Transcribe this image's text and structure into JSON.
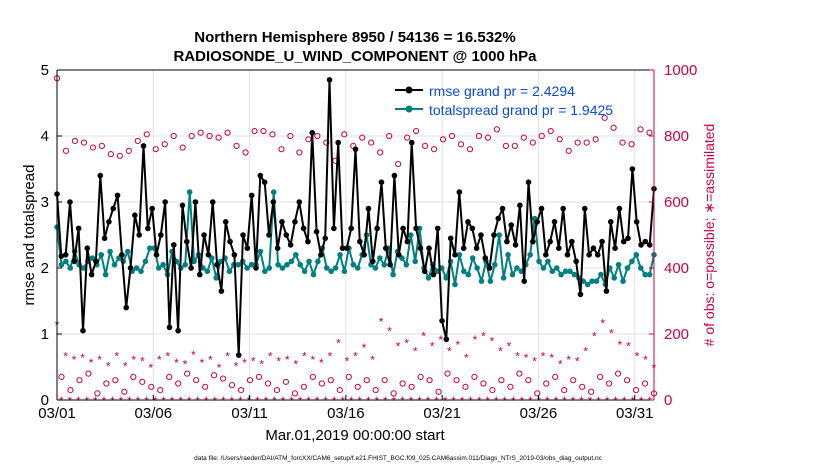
{
  "chart_data": {
    "type": "line",
    "title": "Northern Hemisphere 8950 / 54136 = 16.532%",
    "subtitle": "RADIOSONDE_U_WIND_COMPONENT @ 1000 hPa",
    "xlabel": "Mar.01,2019 00:00:00 start",
    "ylabel": "rmse and totalspread",
    "y2label": "# of obs: o=possible; ∗=assimilated",
    "footer": "data file: /Users/raeder/DAI/ATM_forcXX/CAM6_setup/f.e21.FHIST_BGC.f09_025.CAM6assim.011/Diags_NTrS_2019-03/obs_diag_output.nc",
    "x_ticks": [
      "03/01",
      "03/06",
      "03/11",
      "03/16",
      "03/21",
      "03/26",
      "03/31"
    ],
    "xlim": [
      0,
      31
    ],
    "ylim": [
      0,
      5
    ],
    "y_ticks": [
      "0",
      "1",
      "2",
      "3",
      "4",
      "5"
    ],
    "y2lim": [
      0,
      1000
    ],
    "y2_ticks": [
      "0",
      "200",
      "400",
      "600",
      "800",
      "1000"
    ],
    "series": [
      {
        "name": "rmse grand pr = 2.4294",
        "color": "#000000",
        "values": [
          3.12,
          2.18,
          2.2,
          3.0,
          2.1,
          2.6,
          1.05,
          2.3,
          1.9,
          2.1,
          3.4,
          2.45,
          2.7,
          2.9,
          3.1,
          2.2,
          1.4,
          2.0,
          2.8,
          2.5,
          3.85,
          2.6,
          2.9,
          2.2,
          2.5,
          3.0,
          1.1,
          2.35,
          1.05,
          2.95,
          2.4,
          2.0,
          3.0,
          1.9,
          2.5,
          2.2,
          3.0,
          2.05,
          1.65,
          2.7,
          2.4,
          2.2,
          0.68,
          2.5,
          2.3,
          3.1,
          2.0,
          3.4,
          3.3,
          2.5,
          3.0,
          2.3,
          2.7,
          2.5,
          2.35,
          2.7,
          3.0,
          2.6,
          2.4,
          4.05,
          2.55,
          2.2,
          2.45,
          4.85,
          2.6,
          3.9,
          2.3,
          2.3,
          2.6,
          3.8,
          2.4,
          2.2,
          2.9,
          2.1,
          2.6,
          3.3,
          2.3,
          2.05,
          3.4,
          2.2,
          2.6,
          2.4,
          3.9,
          2.6,
          2.3,
          1.95,
          2.3,
          1.9,
          2.6,
          1.2,
          0.92,
          2.45,
          2.2,
          3.15,
          2.3,
          2.7,
          2.6,
          2.3,
          2.5,
          2.15,
          2.0,
          2.5,
          2.75,
          2.9,
          2.4,
          2.65,
          2.35,
          2.95,
          1.8,
          3.3,
          2.4,
          2.7,
          2.9,
          2.2,
          2.4,
          2.7,
          2.3,
          2.9,
          2.2,
          2.4,
          2.1,
          1.6,
          2.9,
          2.2,
          2.3,
          2.2,
          2.4,
          1.65,
          2.7,
          2.3,
          2.9,
          2.4,
          2.45,
          3.5,
          2.7,
          2.35,
          2.4,
          2.35,
          3.2
        ]
      },
      {
        "name": "totalspread grand pr = 1.9425",
        "color": "#008080",
        "values": [
          2.62,
          2.05,
          2.1,
          2.0,
          2.25,
          2.05,
          2.0,
          2.1,
          2.15,
          2.05,
          2.2,
          1.9,
          2.25,
          2.05,
          2.15,
          2.1,
          2.25,
          1.95,
          2.0,
          1.95,
          2.1,
          2.3,
          2.3,
          2.0,
          2.05,
          1.9,
          2.25,
          2.1,
          2.0,
          2.05,
          3.15,
          2.1,
          2.2,
          2.0,
          1.95,
          2.15,
          1.85,
          2.1,
          2.15,
          1.95,
          2.05,
          2.05,
          2.1,
          2.0,
          2.05,
          2.05,
          2.25,
          1.95,
          2.0,
          3.15,
          2.05,
          2.0,
          2.05,
          2.1,
          2.2,
          2.05,
          1.95,
          2.1,
          1.9,
          2.1,
          2.3,
          2.0,
          1.95,
          2.0,
          2.2,
          1.95,
          2.3,
          2.05,
          2.0,
          2.2,
          2.5,
          2.05,
          2.0,
          2.15,
          2.05,
          2.3,
          1.9,
          2.25,
          2.15,
          2.05,
          2.5,
          2.1,
          2.6,
          2.0,
          1.85,
          2.05,
          1.95,
          2.0,
          1.85,
          2.1,
          1.75,
          2.2,
          1.95,
          1.9,
          2.15,
          2.0,
          1.8,
          2.1,
          1.8,
          2.05,
          2.5,
          1.85,
          2.2,
          1.9,
          2.0,
          1.95,
          2.05,
          2.2,
          2.75,
          2.1,
          2.0,
          2.1,
          1.95,
          2.0,
          1.9,
          1.95,
          1.95,
          1.9,
          1.85,
          1.8,
          1.75,
          1.8,
          1.8,
          1.9,
          1.75,
          2.0,
          1.85,
          2.05,
          1.8,
          2.0,
          2.1,
          2.2,
          2.0,
          1.9,
          1.9,
          2.2
        ]
      },
      {
        "name": "possible",
        "color": "#cc0044",
        "marker": "circle",
        "values": [
          975,
          70,
          755,
          30,
          785,
          60,
          780,
          80,
          765,
          20,
          770,
          50,
          745,
          60,
          740,
          25,
          755,
          70,
          785,
          55,
          805,
          40,
          760,
          30,
          775,
          70,
          800,
          50,
          765,
          80,
          800,
          60,
          810,
          40,
          800,
          75,
          795,
          65,
          810,
          45,
          770,
          30,
          750,
          60,
          815,
          70,
          815,
          50,
          805,
          30,
          760,
          55,
          800,
          20,
          750,
          40,
          790,
          70,
          800,
          50,
          780,
          60,
          725,
          30,
          805,
          70,
          770,
          40,
          795,
          60,
          780,
          30,
          750,
          60,
          800,
          20,
          715,
          50,
          795,
          40,
          815,
          70,
          770,
          60,
          760,
          25,
          790,
          80,
          800,
          60,
          775,
          40,
          760,
          70,
          800,
          50,
          795,
          30,
          820,
          60,
          770,
          40,
          770,
          80,
          795,
          60,
          780,
          20,
          800,
          50,
          815,
          70,
          790,
          30,
          755,
          60,
          780,
          40,
          780,
          25,
          790,
          70,
          855,
          50,
          825,
          80,
          780,
          60,
          775,
          30,
          820,
          50,
          810,
          20
        ]
      },
      {
        "name": "assimilated",
        "color": "#cc0044",
        "marker": "asterisk",
        "values": [
          230,
          0,
          135,
          0,
          125,
          0,
          130,
          0,
          115,
          0,
          125,
          0,
          105,
          0,
          135,
          0,
          105,
          0,
          125,
          0,
          120,
          0,
          100,
          0,
          125,
          0,
          135,
          0,
          115,
          0,
          110,
          0,
          140,
          0,
          115,
          0,
          125,
          0,
          100,
          0,
          135,
          0,
          105,
          0,
          115,
          0,
          120,
          0,
          110,
          0,
          135,
          0,
          120,
          0,
          125,
          0,
          110,
          0,
          135,
          0,
          125,
          0,
          115,
          0,
          135,
          0,
          175,
          0,
          120,
          0,
          135,
          0,
          160,
          0,
          125,
          0,
          240,
          0,
          210,
          0,
          165,
          0,
          175,
          0,
          150,
          0,
          195,
          0,
          165,
          0,
          185,
          0,
          150,
          0,
          170,
          0,
          130,
          0,
          185,
          0,
          195,
          0,
          180,
          0,
          150,
          0,
          165,
          0,
          135,
          0,
          130,
          0,
          120,
          0,
          135,
          0,
          130,
          0,
          110,
          0,
          125,
          0,
          120,
          0,
          150,
          0,
          195,
          0,
          235,
          0,
          205,
          0,
          170,
          0,
          165,
          0,
          135,
          0,
          125,
          0,
          100
        ]
      }
    ],
    "legend": "top-right",
    "legend_text_color": "#0a4bd6",
    "axis_color_left": "#000000",
    "axis_color_right": "#cc0044"
  }
}
